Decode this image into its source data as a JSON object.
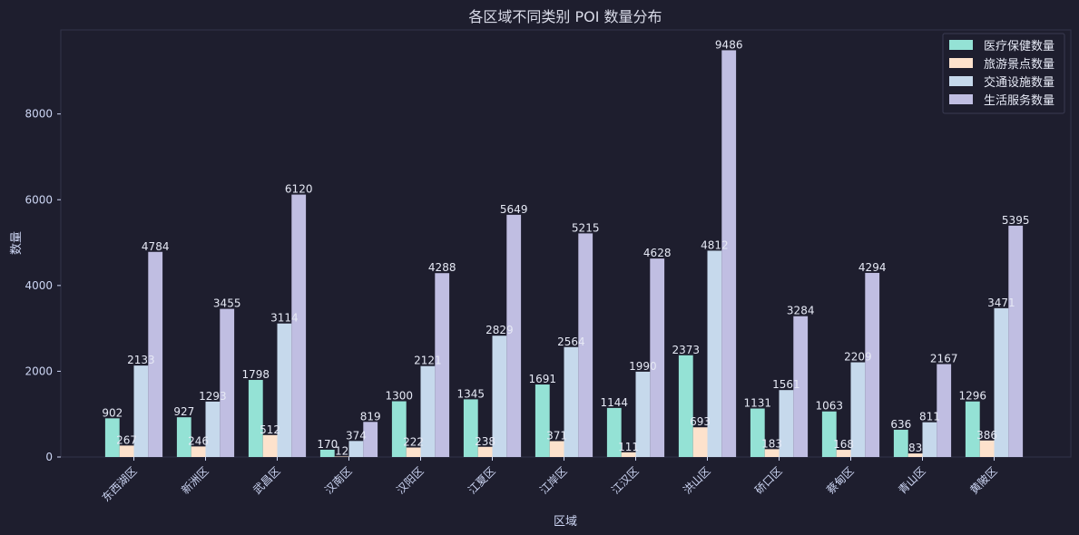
{
  "chart_data": {
    "type": "bar",
    "title": "各区域不同类别 POI 数量分布",
    "xlabel": "区域",
    "ylabel": "数量",
    "ylim": [
      0,
      9960
    ],
    "yticks": [
      "0",
      "2000",
      "4000",
      "6000",
      "8000"
    ],
    "categories": [
      "东西湖区",
      "新洲区",
      "武昌区",
      "汉南区",
      "汉阳区",
      "江夏区",
      "江岸区",
      "江汉区",
      "洪山区",
      "硚口区",
      "蔡甸区",
      "青山区",
      "黄陂区"
    ],
    "series": [
      {
        "name": "医疗保健数量",
        "color": "#94e2d5",
        "values": [
          902,
          927,
          1798,
          170,
          1300,
          1345,
          1691,
          1144,
          2373,
          1131,
          1063,
          636,
          1296
        ]
      },
      {
        "name": "旅游景点数量",
        "color": "#fde2cc",
        "values": [
          267,
          246,
          512,
          12,
          222,
          238,
          371,
          111,
          693,
          183,
          168,
          83,
          386
        ]
      },
      {
        "name": "交通设施数量",
        "color": "#c6d9ec",
        "values": [
          2133,
          1293,
          3114,
          374,
          2121,
          2829,
          2564,
          1990,
          4812,
          1561,
          2209,
          811,
          3471
        ]
      },
      {
        "name": "生活服务数量",
        "color": "#c0bee2",
        "values": [
          4784,
          3455,
          6120,
          819,
          4288,
          5649,
          5215,
          4628,
          9486,
          3284,
          4294,
          2167,
          5395
        ]
      }
    ],
    "legend": "top-right",
    "grid": false
  }
}
